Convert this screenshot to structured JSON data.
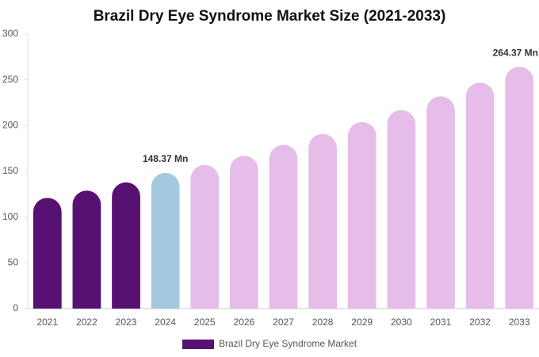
{
  "chart_data": {
    "type": "bar",
    "title": "Brazil Dry Eye Syndrome Market Size (2021-2033)",
    "categories": [
      "2021",
      "2022",
      "2023",
      "2024",
      "2025",
      "2026",
      "2027",
      "2028",
      "2029",
      "2030",
      "2031",
      "2032",
      "2033"
    ],
    "series": [
      {
        "name": "Brazil Dry Eye Syndrome Market",
        "color": "#561172",
        "values": [
          121,
          129,
          138,
          148.37,
          157,
          167,
          179,
          191,
          204,
          217,
          232,
          247,
          264.37
        ],
        "value_labels": [
          null,
          null,
          null,
          "148.37 Mn",
          null,
          null,
          null,
          null,
          null,
          null,
          null,
          null,
          "264.37 Mn"
        ],
        "colors": [
          "#561172",
          "#561172",
          "#561172",
          "#a3c9df",
          "#e6bde8",
          "#e6bde8",
          "#e6bde8",
          "#e6bde8",
          "#e6bde8",
          "#e6bde8",
          "#e6bde8",
          "#e6bde8",
          "#e6bde8"
        ]
      }
    ],
    "ylim": [
      0,
      300
    ],
    "yticks": [
      0,
      50,
      100,
      150,
      200,
      250,
      300
    ],
    "grid": false
  }
}
